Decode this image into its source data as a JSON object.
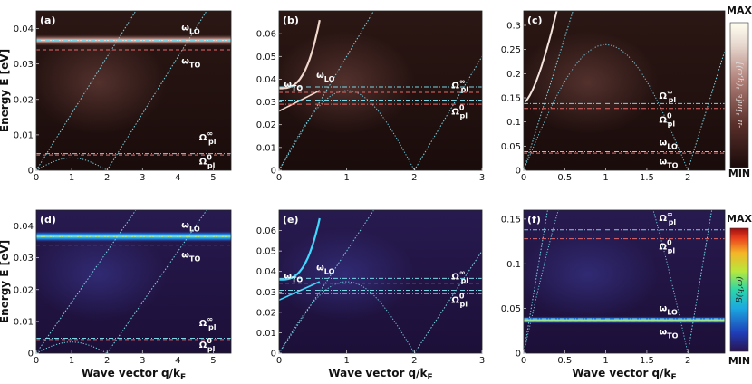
{
  "colorbars": {
    "top": {
      "max_label": "MAX",
      "min_label": "MIN",
      "label": "-π⁻¹Im[ε⁻¹(q,ω)]",
      "label_color": "#dddddd"
    },
    "bottom": {
      "max_label": "MAX",
      "min_label": "MIN",
      "label": "B(q,ω)",
      "label_color": "#222222"
    }
  },
  "chart_data": [
    {
      "id": "a",
      "label": "(a)",
      "type": "heatmap",
      "colormap": "loss",
      "ylabel": "Energy E [eV]",
      "xlabel": "",
      "xlim": [
        0,
        5.5
      ],
      "ylim": [
        0,
        0.045
      ],
      "xticks": [
        0,
        1,
        2,
        3,
        4,
        5
      ],
      "yticks": [
        0,
        0.01,
        0.02,
        0.03,
        0.04
      ],
      "ytick_labels": [
        "0",
        "0.01",
        "0.02",
        "0.03",
        "0.04"
      ],
      "hlines": [
        {
          "name": "omega-LO",
          "y": 0.0367,
          "style": "dashdot",
          "color": "#79d7e6"
        },
        {
          "name": "omega-TO",
          "y": 0.034,
          "style": "dashed",
          "color": "#e56a6a"
        },
        {
          "name": "omega-pl-inf",
          "y": 0.0047,
          "style": "dashdot",
          "color": "#79d7e6"
        },
        {
          "name": "omega-pl-0",
          "y": 0.0043,
          "style": "dashed",
          "color": "#e56a6a"
        }
      ],
      "bright_lines": [
        {
          "name": "lo-band",
          "y": 0.0367
        }
      ],
      "annotations": [
        {
          "name": "omega-lo-label",
          "text": "ω",
          "sub": "LO",
          "sup": "",
          "x": 4.1,
          "y": 0.0395
        },
        {
          "name": "omega-to-label",
          "text": "ω",
          "sub": "TO",
          "sup": "",
          "x": 4.1,
          "y": 0.03
        },
        {
          "name": "omega-pl-inf-label",
          "text": "Ω",
          "sub": "pl",
          "sup": "∞",
          "x": 4.6,
          "y": 0.0085
        },
        {
          "name": "omega-pl-0-label",
          "text": "Ω",
          "sub": "pl",
          "sup": "0",
          "x": 4.6,
          "y": 0.0017
        }
      ]
    },
    {
      "id": "b",
      "label": "(b)",
      "type": "heatmap",
      "colormap": "loss",
      "ylabel": "",
      "xlabel": "",
      "xlim": [
        0,
        3
      ],
      "ylim": [
        0,
        0.07
      ],
      "xticks": [
        0,
        1,
        2,
        3
      ],
      "yticks": [
        0,
        0.01,
        0.02,
        0.03,
        0.04,
        0.05,
        0.06
      ],
      "ytick_labels": [
        "0",
        "0.01",
        "0.02",
        "0.03",
        "0.04",
        "0.05",
        "0.06"
      ],
      "hlines": [
        {
          "name": "omega-LO",
          "y": 0.0366,
          "style": "dashdot",
          "color": "#79d7e6"
        },
        {
          "name": "omega-TO",
          "y": 0.0342,
          "style": "dashed",
          "color": "#e56a6a"
        },
        {
          "name": "omega-pl-inf",
          "y": 0.0308,
          "style": "dashdot",
          "color": "#79d7e6"
        },
        {
          "name": "omega-pl-0",
          "y": 0.029,
          "style": "dashdot",
          "color": "#e56a6a"
        }
      ],
      "bright_lines": [],
      "annotations": [
        {
          "name": "omega-to-label",
          "text": "ω",
          "sub": "TO",
          "sup": "",
          "x": 0.07,
          "y": 0.0365
        },
        {
          "name": "omega-lo-label",
          "text": "ω",
          "sub": "LO",
          "sup": "",
          "x": 0.55,
          "y": 0.0405
        },
        {
          "name": "omega-pl-inf-label",
          "text": "Ω",
          "sub": "pl",
          "sup": "∞",
          "x": 2.55,
          "y": 0.036
        },
        {
          "name": "omega-pl-0-label",
          "text": "Ω",
          "sub": "pl",
          "sup": "0",
          "x": 2.55,
          "y": 0.0245
        }
      ]
    },
    {
      "id": "c",
      "label": "(c)",
      "type": "heatmap",
      "colormap": "loss",
      "ylabel": "",
      "xlabel": "",
      "xlim": [
        0,
        2.45
      ],
      "ylim": [
        0,
        0.33
      ],
      "xticks": [
        0,
        0.5,
        1,
        1.5,
        2
      ],
      "xtick_labels": [
        "0",
        "0.5",
        "1",
        "1.5",
        "2"
      ],
      "yticks": [
        0,
        0.05,
        0.1,
        0.15,
        0.2,
        0.25,
        0.3
      ],
      "ytick_labels": [
        "0",
        "0.05",
        "0.1",
        "0.15",
        "0.2",
        "0.25",
        "0.3"
      ],
      "hlines": [
        {
          "name": "omega-pl-inf",
          "y": 0.138,
          "style": "dashdot",
          "color": "#79d7e6"
        },
        {
          "name": "omega-pl-0",
          "y": 0.128,
          "style": "dashdot",
          "color": "#e56a6a"
        },
        {
          "name": "omega-LO",
          "y": 0.0385,
          "style": "dashdot",
          "color": "#79d7e6"
        },
        {
          "name": "omega-TO",
          "y": 0.0355,
          "style": "dashed",
          "color": "#e56a6a"
        }
      ],
      "bright_lines": [],
      "annotations": [
        {
          "name": "omega-pl-inf-label",
          "text": "Ω",
          "sub": "pl",
          "sup": "∞",
          "x": 1.65,
          "y": 0.148
        },
        {
          "name": "omega-pl-0-label",
          "text": "Ω",
          "sub": "pl",
          "sup": "0",
          "x": 1.65,
          "y": 0.098
        },
        {
          "name": "omega-lo-label",
          "text": "ω",
          "sub": "LO",
          "sup": "",
          "x": 1.65,
          "y": 0.052
        },
        {
          "name": "omega-to-label",
          "text": "ω",
          "sub": "TO",
          "sup": "",
          "x": 1.65,
          "y": 0.012
        }
      ]
    },
    {
      "id": "d",
      "label": "(d)",
      "type": "heatmap",
      "colormap": "jet",
      "ylabel": "Energy E [eV]",
      "xlabel": "Wave vector q/k",
      "xlabel_sub": "F",
      "xlim": [
        0,
        5.5
      ],
      "ylim": [
        0,
        0.045
      ],
      "xticks": [
        0,
        1,
        2,
        3,
        4,
        5
      ],
      "yticks": [
        0,
        0.01,
        0.02,
        0.03,
        0.04
      ],
      "ytick_labels": [
        "0",
        "0.01",
        "0.02",
        "0.03",
        "0.04"
      ],
      "hlines": [
        {
          "name": "omega-LO",
          "y": 0.0367,
          "style": "dashdot",
          "color": "#79d7e6"
        },
        {
          "name": "omega-TO",
          "y": 0.034,
          "style": "dashed",
          "color": "#e56a6a"
        },
        {
          "name": "omega-pl-inf",
          "y": 0.0047,
          "style": "dashdot",
          "color": "#79d7e6"
        },
        {
          "name": "omega-pl-0",
          "y": 0.0043,
          "style": "dashed",
          "color": "#e56a6a"
        }
      ],
      "bright_lines": [
        {
          "name": "lo-band",
          "y": 0.0367
        }
      ],
      "annotations": [
        {
          "name": "omega-lo-label",
          "text": "ω",
          "sub": "LO",
          "sup": "",
          "x": 4.1,
          "y": 0.0395
        },
        {
          "name": "omega-to-label",
          "text": "ω",
          "sub": "TO",
          "sup": "",
          "x": 4.1,
          "y": 0.03
        },
        {
          "name": "omega-pl-inf-label",
          "text": "Ω",
          "sub": "pl",
          "sup": "∞",
          "x": 4.6,
          "y": 0.0085
        },
        {
          "name": "omega-pl-0-label",
          "text": "Ω",
          "sub": "pl",
          "sup": "0",
          "x": 4.6,
          "y": 0.0017
        }
      ]
    },
    {
      "id": "e",
      "label": "(e)",
      "type": "heatmap",
      "colormap": "jet",
      "ylabel": "",
      "xlabel": "Wave vector q/k",
      "xlabel_sub": "F",
      "xlim": [
        0,
        3
      ],
      "ylim": [
        0,
        0.07
      ],
      "xticks": [
        0,
        1,
        2,
        3
      ],
      "yticks": [
        0,
        0.01,
        0.02,
        0.03,
        0.04,
        0.05,
        0.06
      ],
      "ytick_labels": [
        "0",
        "0.01",
        "0.02",
        "0.03",
        "0.04",
        "0.05",
        "0.06"
      ],
      "hlines": [
        {
          "name": "omega-LO",
          "y": 0.0366,
          "style": "dashdot",
          "color": "#79d7e6"
        },
        {
          "name": "omega-TO",
          "y": 0.0342,
          "style": "dashed",
          "color": "#e56a6a"
        },
        {
          "name": "omega-pl-inf",
          "y": 0.0308,
          "style": "dashdot",
          "color": "#79d7e6"
        },
        {
          "name": "omega-pl-0",
          "y": 0.029,
          "style": "dashdot",
          "color": "#e56a6a"
        }
      ],
      "bright_lines": [],
      "annotations": [
        {
          "name": "omega-to-label",
          "text": "ω",
          "sub": "TO",
          "sup": "",
          "x": 0.07,
          "y": 0.0365
        },
        {
          "name": "omega-lo-label",
          "text": "ω",
          "sub": "LO",
          "sup": "",
          "x": 0.55,
          "y": 0.0405
        },
        {
          "name": "omega-pl-inf-label",
          "text": "Ω",
          "sub": "pl",
          "sup": "∞",
          "x": 2.55,
          "y": 0.036
        },
        {
          "name": "omega-pl-0-label",
          "text": "Ω",
          "sub": "pl",
          "sup": "0",
          "x": 2.55,
          "y": 0.0245
        }
      ]
    },
    {
      "id": "f",
      "label": "(f)",
      "type": "heatmap",
      "colormap": "jet",
      "ylabel": "",
      "xlabel": "Wave vector q/k",
      "xlabel_sub": "F",
      "xlim": [
        0,
        2.45
      ],
      "ylim": [
        0,
        0.16
      ],
      "xticks": [
        0,
        0.5,
        1,
        1.5,
        2
      ],
      "xtick_labels": [
        "0",
        "0.5",
        "1",
        "1.5",
        "2"
      ],
      "yticks": [
        0,
        0.05,
        0.1,
        0.15
      ],
      "ytick_labels": [
        "0",
        "0.05",
        "0.1",
        "0.15"
      ],
      "hlines": [
        {
          "name": "omega-pl-inf",
          "y": 0.138,
          "style": "dashdot",
          "color": "#79d7e6"
        },
        {
          "name": "omega-pl-0",
          "y": 0.128,
          "style": "dashdot",
          "color": "#e56a6a"
        },
        {
          "name": "omega-LO",
          "y": 0.0385,
          "style": "dashdot",
          "color": "#79d7e6"
        },
        {
          "name": "omega-TO",
          "y": 0.0355,
          "style": "dashed",
          "color": "#e56a6a"
        }
      ],
      "bright_lines": [],
      "annotations": [
        {
          "name": "omega-pl-inf-label",
          "text": "Ω",
          "sub": "pl",
          "sup": "∞",
          "x": 1.65,
          "y": 0.148
        },
        {
          "name": "omega-pl-0-label",
          "text": "Ω",
          "sub": "pl",
          "sup": "0",
          "x": 1.65,
          "y": 0.116
        },
        {
          "name": "omega-lo-label",
          "text": "ω",
          "sub": "LO",
          "sup": "",
          "x": 1.65,
          "y": 0.047
        },
        {
          "name": "omega-to-label",
          "text": "ω",
          "sub": "TO",
          "sup": "",
          "x": 1.65,
          "y": 0.021
        }
      ]
    }
  ]
}
